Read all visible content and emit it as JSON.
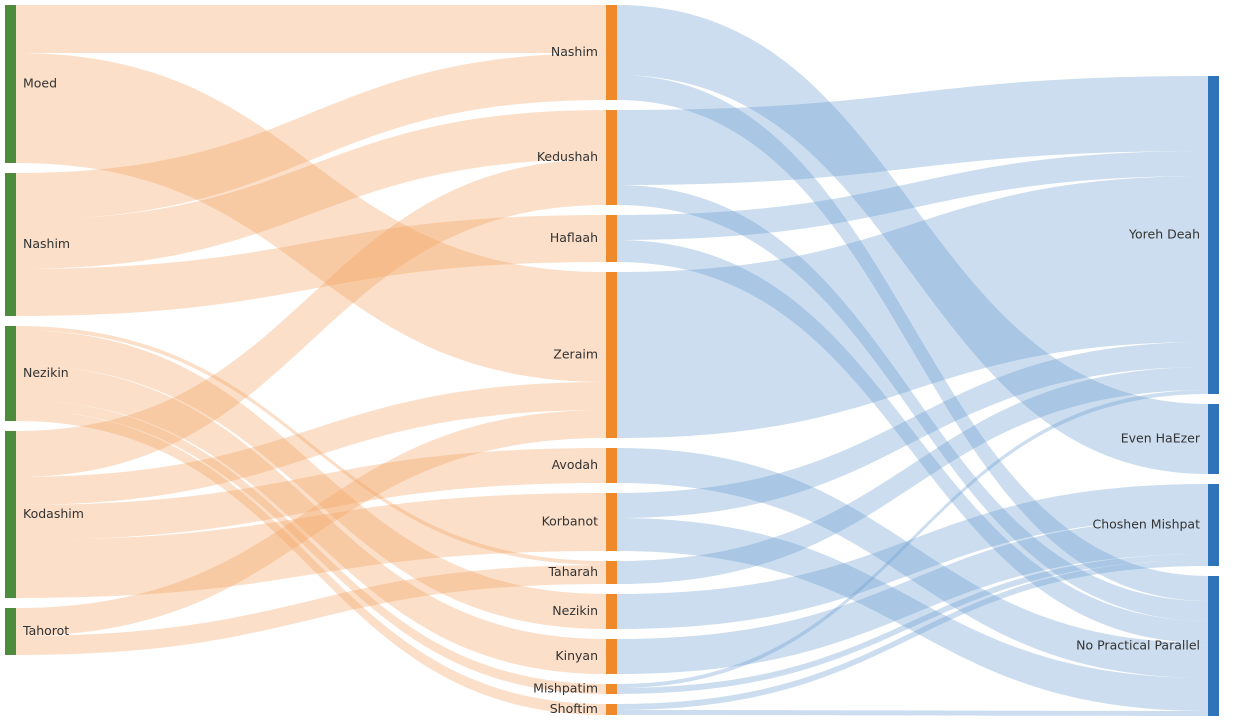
{
  "chart_data": {
    "type": "sankey",
    "node_colors": [
      "#4c8c3c",
      "#ee8a2a",
      "#2f73b8"
    ],
    "link_colors": [
      "#f4a460",
      "#6a9fd0"
    ],
    "nodes": [
      {
        "name": "Moed",
        "column": 0
      },
      {
        "name": "Nashim",
        "column": 0
      },
      {
        "name": "Nezikin",
        "column": 0
      },
      {
        "name": "Kodashim",
        "column": 0
      },
      {
        "name": "Tahorot",
        "column": 0
      },
      {
        "name": "Nashim",
        "column": 1
      },
      {
        "name": "Kedushah",
        "column": 1
      },
      {
        "name": "Haflaah",
        "column": 1
      },
      {
        "name": "Zeraim",
        "column": 1
      },
      {
        "name": "Avodah",
        "column": 1
      },
      {
        "name": "Korbanot",
        "column": 1
      },
      {
        "name": "Taharah",
        "column": 1
      },
      {
        "name": "Nezikin",
        "column": 1
      },
      {
        "name": "Kinyan",
        "column": 1
      },
      {
        "name": "Mishpatim",
        "column": 1
      },
      {
        "name": "Shoftim",
        "column": 1
      },
      {
        "name": "Yoreh Deah",
        "column": 2
      },
      {
        "name": "Even HaEzer",
        "column": 2
      },
      {
        "name": "Choshen Mishpat",
        "column": 2
      },
      {
        "name": "No Practical Parallel",
        "column": 2
      }
    ],
    "links": [
      {
        "source": 0,
        "target": 5,
        "value": 48
      },
      {
        "source": 0,
        "target": 8,
        "value": 110
      },
      {
        "source": 1,
        "target": 5,
        "value": 47
      },
      {
        "source": 1,
        "target": 6,
        "value": 49
      },
      {
        "source": 1,
        "target": 7,
        "value": 47
      },
      {
        "source": 2,
        "target": 11,
        "value": 4
      },
      {
        "source": 2,
        "target": 12,
        "value": 35
      },
      {
        "source": 2,
        "target": 13,
        "value": 35
      },
      {
        "source": 2,
        "target": 14,
        "value": 10
      },
      {
        "source": 2,
        "target": 15,
        "value": 11
      },
      {
        "source": 3,
        "target": 6,
        "value": 46
      },
      {
        "source": 3,
        "target": 8,
        "value": 28
      },
      {
        "source": 3,
        "target": 9,
        "value": 35
      },
      {
        "source": 3,
        "target": 10,
        "value": 58
      },
      {
        "source": 4,
        "target": 8,
        "value": 28
      },
      {
        "source": 4,
        "target": 11,
        "value": 19
      },
      {
        "source": 5,
        "target": 17,
        "value": 70
      },
      {
        "source": 5,
        "target": 19,
        "value": 25
      },
      {
        "source": 6,
        "target": 16,
        "value": 75
      },
      {
        "source": 6,
        "target": 19,
        "value": 20
      },
      {
        "source": 7,
        "target": 16,
        "value": 25
      },
      {
        "source": 7,
        "target": 19,
        "value": 22
      },
      {
        "source": 8,
        "target": 16,
        "value": 166
      },
      {
        "source": 9,
        "target": 19,
        "value": 35
      },
      {
        "source": 10,
        "target": 16,
        "value": 25
      },
      {
        "source": 10,
        "target": 19,
        "value": 33
      },
      {
        "source": 11,
        "target": 16,
        "value": 23
      },
      {
        "source": 12,
        "target": 18,
        "value": 35
      },
      {
        "source": 13,
        "target": 18,
        "value": 35
      },
      {
        "source": 14,
        "target": 16,
        "value": 4
      },
      {
        "source": 14,
        "target": 18,
        "value": 6
      },
      {
        "source": 15,
        "target": 18,
        "value": 6
      },
      {
        "source": 15,
        "target": 19,
        "value": 5
      }
    ]
  }
}
